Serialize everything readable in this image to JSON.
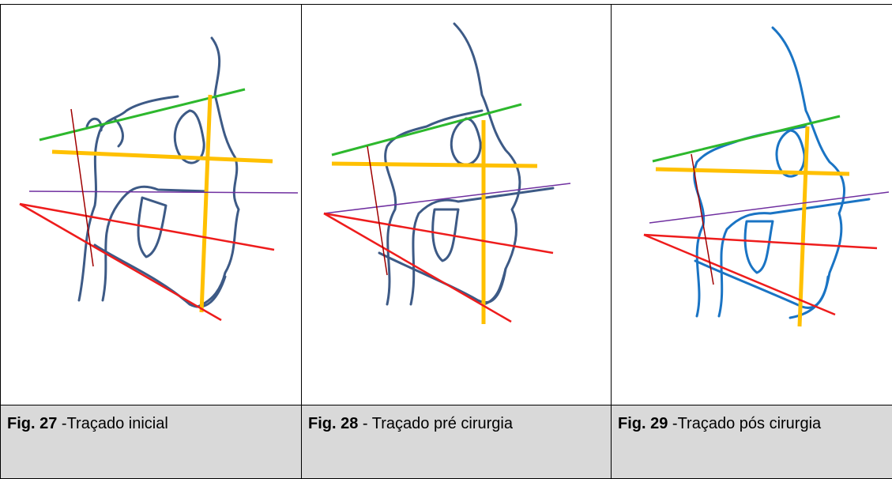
{
  "figures": [
    {
      "label": "Fig. 27",
      "caption": "-Traçado inicial"
    },
    {
      "label": "Fig. 28",
      "caption": "- Traçado pré cirurgia"
    },
    {
      "label": "Fig. 29",
      "caption": "-Traçado pós cirurgia"
    }
  ]
}
